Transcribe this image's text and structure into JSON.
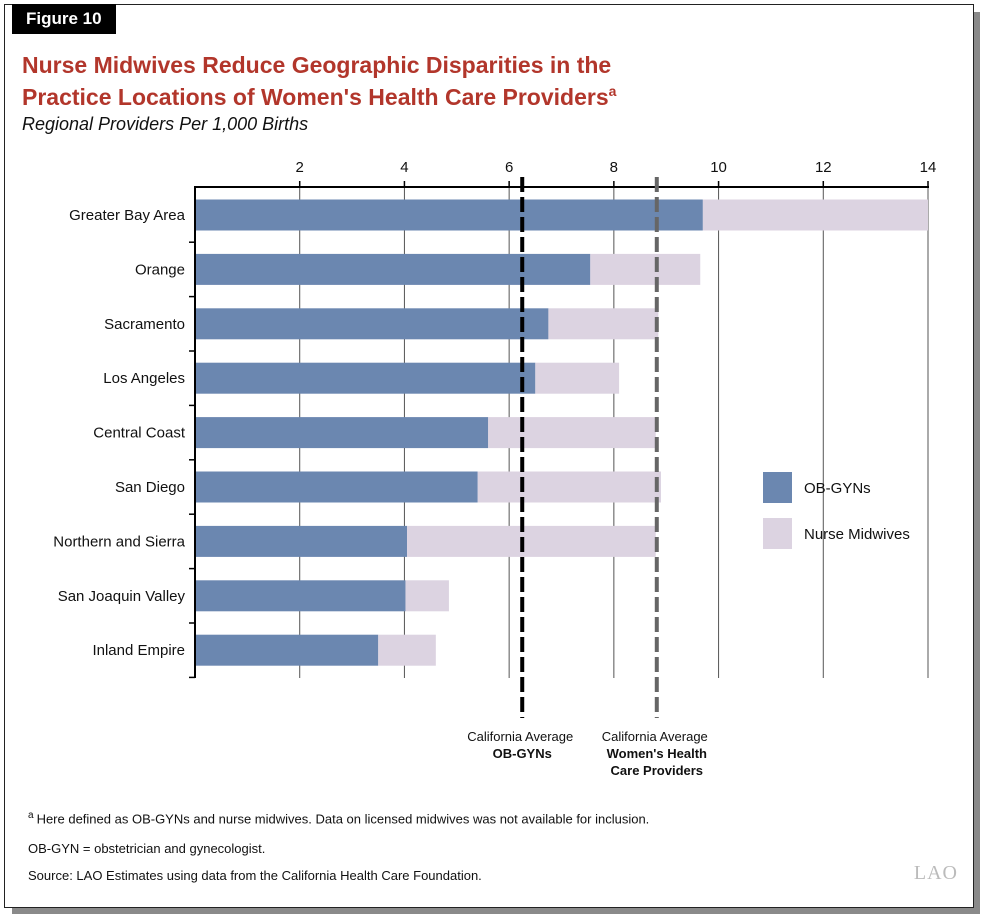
{
  "figure_label": "Figure 10",
  "title_line1": "Nurse Midwives Reduce Geographic Disparities in the",
  "title_line2": "Practice Locations of Women's Health Care Providers",
  "title_superscript": "a",
  "subtitle": "Regional Providers Per 1,000 Births",
  "chart_data": {
    "type": "bar",
    "orientation": "horizontal",
    "stacked": true,
    "categories": [
      "Greater Bay Area",
      "Orange",
      "Sacramento",
      "Los Angeles",
      "Central Coast",
      "San Diego",
      "Northern and Sierra",
      "San Joaquin Valley",
      "Inland Empire"
    ],
    "series": [
      {
        "name": "OB-GYNs",
        "color": "#6b87b0",
        "values": [
          9.7,
          7.55,
          6.75,
          6.5,
          5.6,
          5.4,
          4.05,
          4.02,
          3.5
        ]
      },
      {
        "name": "Nurse Midwives",
        "color": "#dcd3e1",
        "values": [
          4.3,
          2.1,
          2.1,
          1.6,
          3.2,
          3.5,
          4.75,
          0.83,
          1.1
        ]
      }
    ],
    "x_ticks": [
      "2",
      "4",
      "6",
      "8",
      "10",
      "12",
      "14"
    ],
    "xlim": [
      0,
      14
    ],
    "grid": true,
    "legend_position": "right",
    "reference_lines": [
      {
        "value": 6.25,
        "color": "#000000",
        "label_line1": "California Average",
        "label_line2": "OB-GYNs",
        "label_line3": ""
      },
      {
        "value": 8.82,
        "color": "#666666",
        "label_line1": "California Average",
        "label_line2": "Women's Health",
        "label_line3": "Care Providers"
      }
    ]
  },
  "footnotes": {
    "note_marker": "a",
    "note_a": "Here defined as OB-GYNs and nurse midwives. Data on licensed midwives was not available for inclusion.",
    "abbrev": "OB-GYN = obstetrician and gynecologist.",
    "source": "Source: LAO Estimates using data from the California Health Care Foundation."
  },
  "logo_text": "LAO"
}
